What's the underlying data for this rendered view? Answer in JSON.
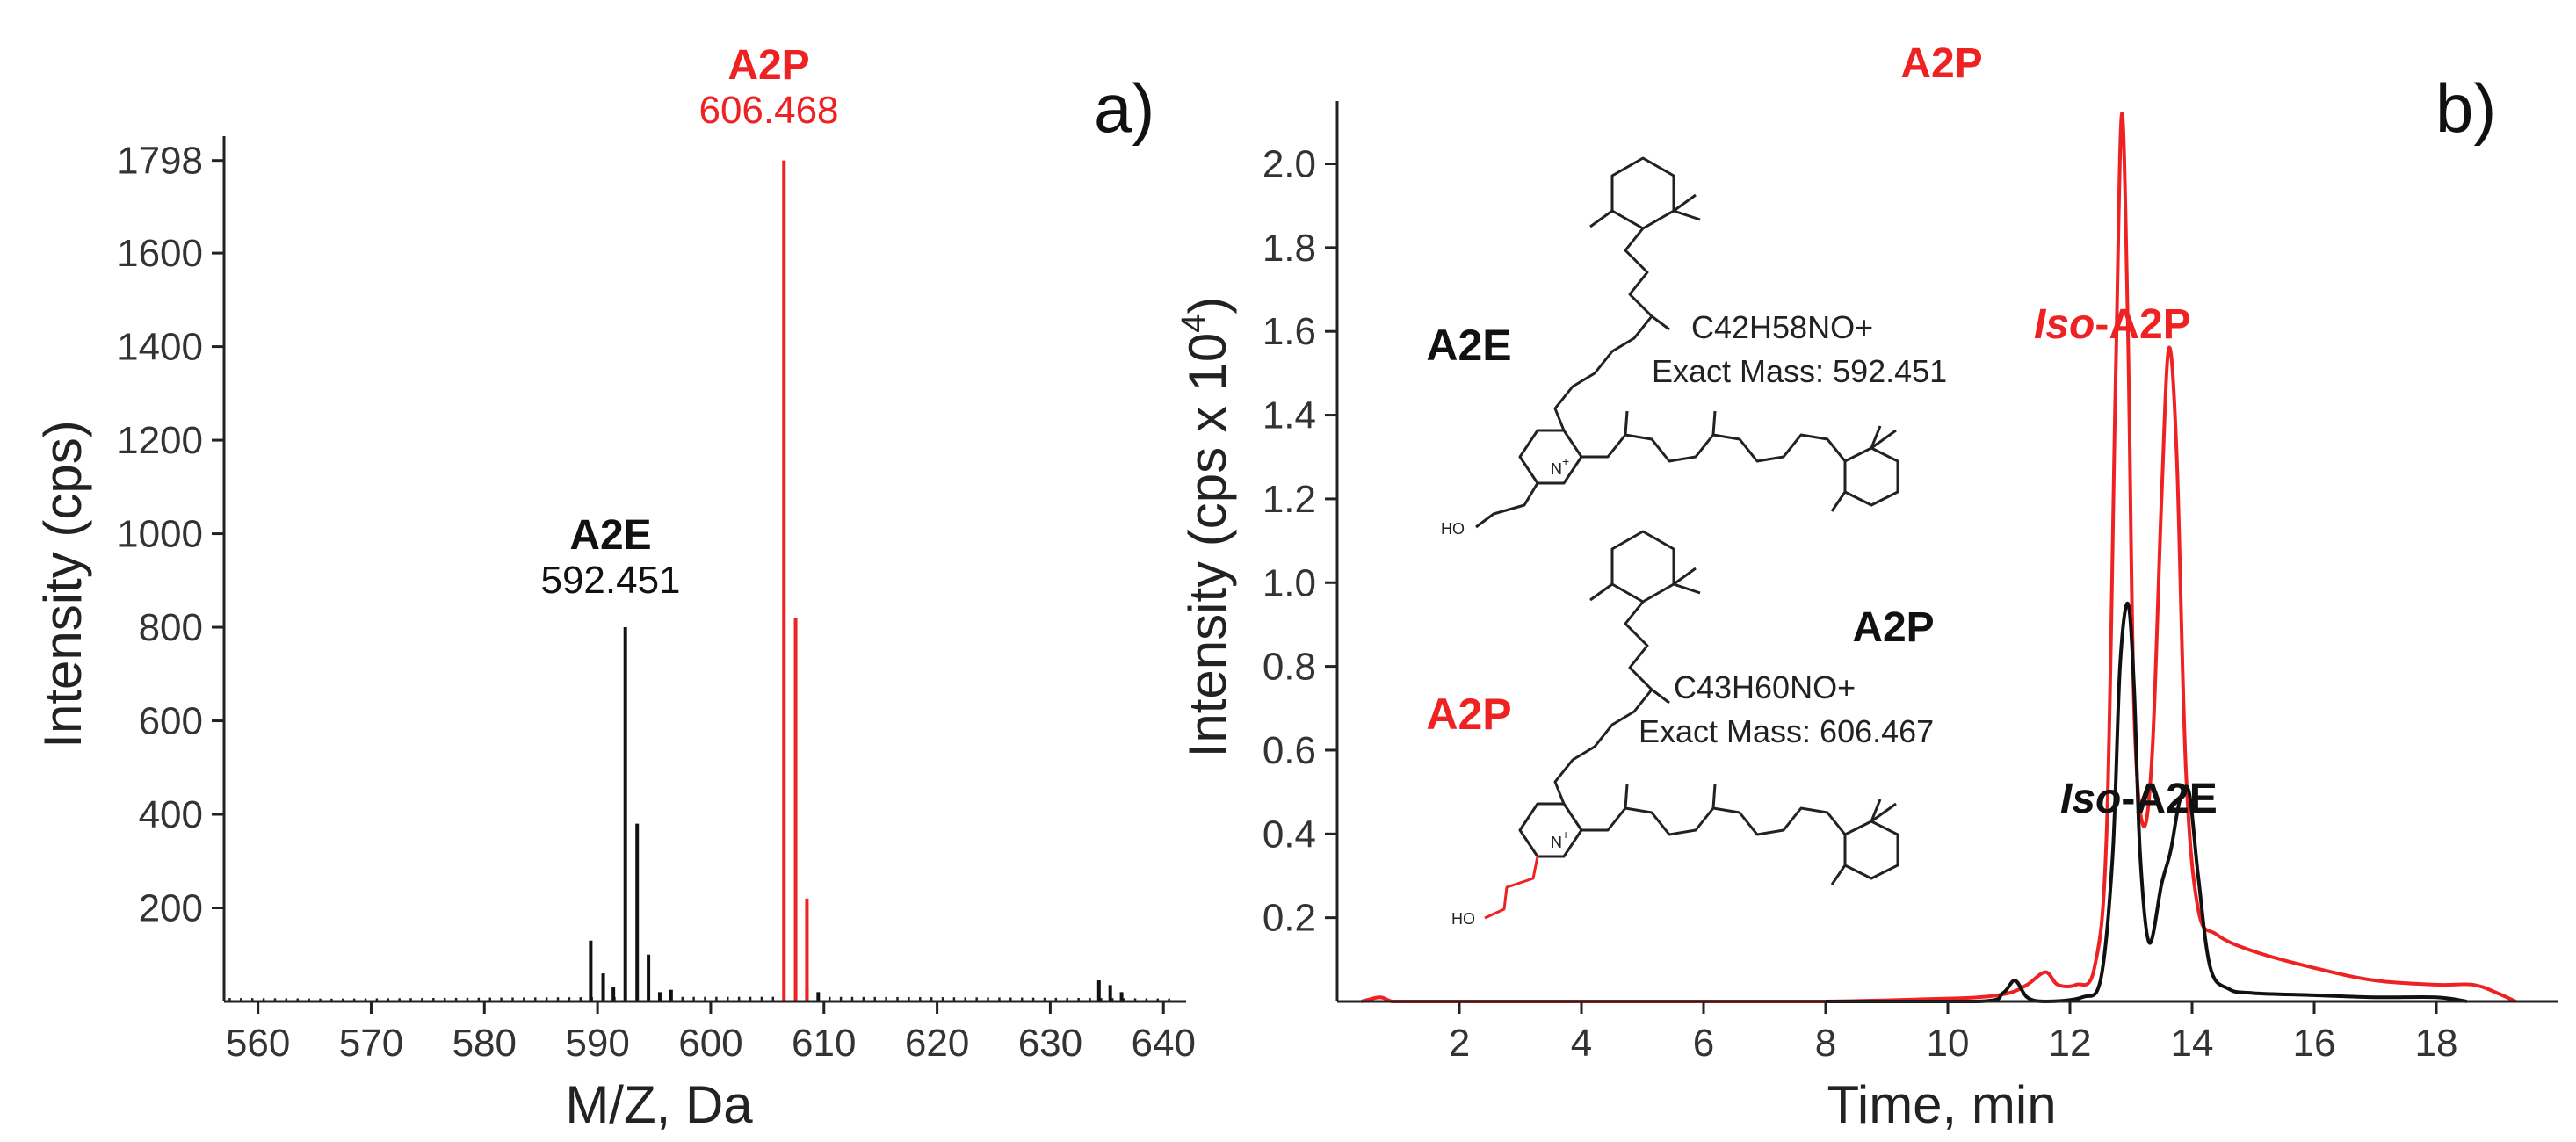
{
  "colors": {
    "red": "#ee2222",
    "black": "#111111",
    "axis": "#222222"
  },
  "chart_data": [
    {
      "type": "bar",
      "panel_label": "a)",
      "xlabel": "M/Z, Da",
      "ylabel": "Intensity (cps)",
      "xlim": [
        557,
        642
      ],
      "ylim": [
        0,
        1850
      ],
      "xticks": [
        560,
        570,
        580,
        590,
        600,
        610,
        620,
        630,
        640
      ],
      "yticks": [
        200,
        400,
        600,
        800,
        1000,
        1200,
        1400,
        1600,
        1798
      ],
      "series": [
        {
          "name": "A2E",
          "color": "#111111",
          "peaks": [
            {
              "mz": 589.4,
              "value": 130
            },
            {
              "mz": 590.5,
              "value": 60
            },
            {
              "mz": 591.4,
              "value": 30
            },
            {
              "mz": 592.451,
              "value": 800
            },
            {
              "mz": 593.5,
              "value": 380
            },
            {
              "mz": 594.5,
              "value": 100
            },
            {
              "mz": 595.5,
              "value": 20
            },
            {
              "mz": 596.5,
              "value": 25
            },
            {
              "mz": 634.3,
              "value": 45
            },
            {
              "mz": 635.3,
              "value": 35
            },
            {
              "mz": 636.3,
              "value": 20
            },
            {
              "mz": 608.5,
              "value": 30
            },
            {
              "mz": 609.5,
              "value": 20
            }
          ],
          "noise": {
            "from": 557.5,
            "to": 641,
            "step": 1,
            "level": 10
          }
        },
        {
          "name": "A2P",
          "color": "#ee2222",
          "peaks": [
            {
              "mz": 606.468,
              "value": 1798
            },
            {
              "mz": 607.5,
              "value": 820
            },
            {
              "mz": 608.5,
              "value": 220
            }
          ]
        }
      ],
      "annotations": [
        {
          "label": "A2E",
          "value_text": "592.451",
          "color": "#111111"
        },
        {
          "label": "A2P",
          "value_text": "606.468",
          "color": "#ee2222"
        }
      ]
    },
    {
      "type": "line",
      "panel_label": "b)",
      "xlabel": "Time, min",
      "ylabel": "Intensity (cps x 10",
      "ylabel_sup": "4",
      "ylabel_close": ")",
      "xlim": [
        0,
        20
      ],
      "ylim": [
        0,
        2.15
      ],
      "xticks": [
        2,
        4,
        6,
        8,
        10,
        12,
        14,
        16,
        18
      ],
      "yticks": [
        0.2,
        0.4,
        0.6,
        0.8,
        1.0,
        1.2,
        1.4,
        1.6,
        1.8,
        2.0
      ],
      "ytick_labels": [
        "0.2",
        "0.4",
        "0.6",
        "0.8",
        "1.0",
        "1.2",
        "1.4",
        "1.6",
        "1.8",
        "2.0"
      ],
      "series": [
        {
          "name": "A2P trace",
          "color": "#ee2222",
          "x": [
            0.4,
            0.7,
            0.9,
            1.2,
            2,
            4,
            6,
            8,
            9.5,
            10.5,
            11.0,
            11.3,
            11.6,
            11.8,
            12.1,
            12.4,
            12.6,
            12.75,
            12.85,
            12.95,
            13.05,
            13.2,
            13.35,
            13.5,
            13.62,
            13.75,
            13.9,
            14.1,
            14.4,
            15,
            16,
            17,
            18,
            18.6,
            19,
            19.3
          ],
          "y": [
            0.0,
            0.01,
            0.0,
            0.0,
            0.0,
            0.0,
            0.0,
            0.0,
            0.005,
            0.01,
            0.02,
            0.04,
            0.07,
            0.04,
            0.04,
            0.08,
            0.4,
            1.5,
            2.12,
            1.6,
            0.7,
            0.42,
            0.6,
            1.2,
            1.56,
            1.3,
            0.55,
            0.22,
            0.16,
            0.12,
            0.08,
            0.05,
            0.04,
            0.04,
            0.02,
            0.0
          ]
        },
        {
          "name": "A2E trace",
          "color": "#111111",
          "x": [
            8,
            10.5,
            10.9,
            11.1,
            11.3,
            11.6,
            12.2,
            12.5,
            12.7,
            12.82,
            12.95,
            13.05,
            13.15,
            13.3,
            13.5,
            13.65,
            13.8,
            13.95,
            14.1,
            14.3,
            14.6,
            15,
            16,
            17,
            18,
            18.5
          ],
          "y": [
            0.0,
            0.0,
            0.02,
            0.05,
            0.01,
            0.0,
            0.01,
            0.05,
            0.35,
            0.8,
            0.95,
            0.75,
            0.35,
            0.14,
            0.28,
            0.36,
            0.48,
            0.5,
            0.3,
            0.08,
            0.03,
            0.02,
            0.015,
            0.01,
            0.01,
            0.0
          ]
        }
      ],
      "annotations": [
        {
          "label": "A2P",
          "color": "#ee2222",
          "style": "bold"
        },
        {
          "label_italic": "Iso",
          "label_rest": "-A2P",
          "color": "#ee2222"
        },
        {
          "label": "A2P",
          "color": "#111111",
          "style": "bold"
        },
        {
          "label_italic": "Iso",
          "label_rest": "-A2E",
          "color": "#111111"
        }
      ],
      "structures": [
        {
          "name": "A2E",
          "color": "#111111",
          "formula": "C42H58NO+",
          "exact_mass": "Exact Mass: 592.451",
          "oh_label": "HO",
          "n_label": "N",
          "charge": "+"
        },
        {
          "name": "A2P",
          "color": "#ee2222",
          "formula": "C43H60NO+",
          "exact_mass": "Exact Mass: 606.467",
          "oh_label": "HO",
          "n_label": "N",
          "charge": "+"
        }
      ]
    }
  ]
}
